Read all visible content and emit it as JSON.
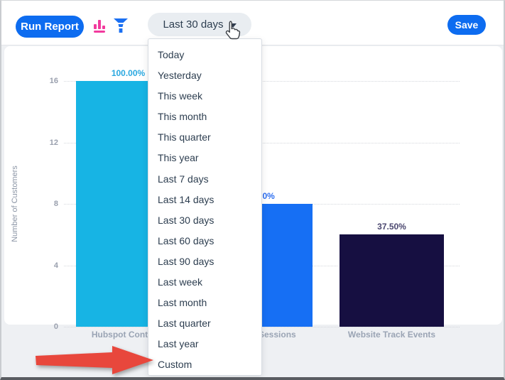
{
  "toolbar": {
    "run_report_label": "Run Report",
    "date_range_value": "Last 30 days",
    "save_label": "Save"
  },
  "dropdown": {
    "items": [
      "Today",
      "Yesterday",
      "This week",
      "This month",
      "This quarter",
      "This year",
      "Last 7 days",
      "Last 14 days",
      "Last 30 days",
      "Last 60 days",
      "Last 90 days",
      "Last week",
      "Last month",
      "Last quarter",
      "Last year",
      "Custom"
    ]
  },
  "chart_data": {
    "type": "bar",
    "title": "",
    "ylabel": "Number of Customers",
    "categories": [
      "Hubspot Contacts",
      "Sessions",
      "Website Track Events"
    ],
    "values": [
      16,
      8,
      6
    ],
    "percent_labels": [
      "100.00%",
      "50.00%",
      "37.50%"
    ],
    "bar_colors": [
      "#17b4e4",
      "#166ff4",
      "#160f41"
    ],
    "label_colors": [
      "#29a8e0",
      "#2e6ff0",
      "#4c4870"
    ],
    "yticks": [
      0,
      4,
      8,
      12,
      16
    ],
    "ylim": [
      0,
      16
    ],
    "grid": "dotted horizontal gridlines",
    "legend": "none"
  },
  "annotation": {
    "arrow_color": "#e8473c",
    "points_to": "Custom"
  },
  "colors": {
    "accent_blue": "#0d6cf0",
    "icon_pink": "#f23a9e",
    "icon_blue": "#1a6ff2",
    "pill_bg": "#e9edf1",
    "text_dark": "#2d3e50",
    "axis_gray": "#9aa4b4"
  }
}
